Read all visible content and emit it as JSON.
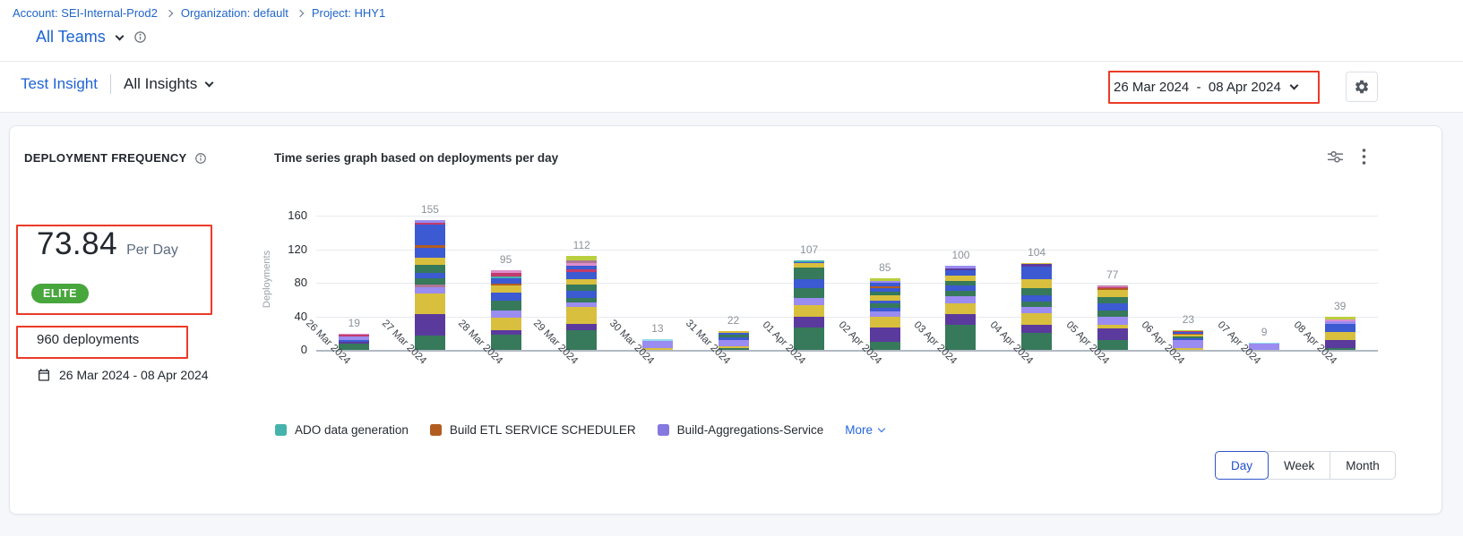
{
  "page": {
    "background": "#f5f7fa",
    "annotation_color": "#ec3a26"
  },
  "breadcrumb": {
    "items": [
      {
        "label": "Account: SEI-Internal-Prod2"
      },
      {
        "label": "Organization: default"
      },
      {
        "label": "Project: HHY1"
      }
    ]
  },
  "team_selector": {
    "label": "All Teams"
  },
  "insight_header": {
    "insight_name": "Test Insight",
    "scope_label": "All Insights"
  },
  "date_range_picker": {
    "label": "26 Mar 2024  -  08 Apr 2024"
  },
  "widget": {
    "title": "DEPLOYMENT FREQUENCY",
    "metric": {
      "value": "73.84",
      "unit": "Per Day",
      "badge": "ELITE",
      "badge_color": "#47a63c"
    },
    "total_label": "960 deployments",
    "date_range": "26 Mar 2024 - 08 Apr 2024",
    "granularity": {
      "options": [
        "Day",
        "Week",
        "Month"
      ],
      "selected": "Day"
    }
  },
  "chart_data": {
    "type": "bar",
    "stacked": true,
    "title": "Time series graph based on deployments per day",
    "xlabel": "",
    "ylabel": "Deployments",
    "ylim": [
      0,
      160
    ],
    "yticks": [
      0,
      40,
      80,
      120,
      160
    ],
    "grid": true,
    "legend_position": "bottom",
    "categories": [
      "26 Mar 2024",
      "27 Mar 2024",
      "28 Mar 2024",
      "29 Mar 2024",
      "30 Mar 2024",
      "31 Mar 2024",
      "01 Apr 2024",
      "02 Apr 2024",
      "03 Apr 2024",
      "04 Apr 2024",
      "05 Apr 2024",
      "06 Apr 2024",
      "07 Apr 2024",
      "08 Apr 2024"
    ],
    "totals": [
      19,
      155,
      95,
      112,
      13,
      22,
      107,
      85,
      100,
      104,
      77,
      23,
      9,
      39
    ],
    "palette": {
      "green": "#36795b",
      "darkpurple": "#5b3a9e",
      "yellow": "#d9bf3e",
      "lavender": "#9a8cf0",
      "blue": "#3c5ad1",
      "teal": "#45b3ab",
      "orange": "#b35c20",
      "crimson": "#c23b6c",
      "pink": "#dd8ecb",
      "mauve": "#b07596",
      "lightblue": "#97dbeb",
      "lime": "#b9cf3d"
    },
    "bars": [
      {
        "category": "26 Mar 2024",
        "total": 19,
        "segments": [
          [
            "green",
            8
          ],
          [
            "darkpurple",
            2
          ],
          [
            "blue",
            2
          ],
          [
            "lavender",
            4
          ],
          [
            "crimson",
            2
          ],
          [
            "pink",
            1
          ]
        ]
      },
      {
        "category": "27 Mar 2024",
        "total": 155,
        "segments": [
          [
            "green",
            17
          ],
          [
            "darkpurple",
            26
          ],
          [
            "yellow",
            24
          ],
          [
            "lavender",
            8
          ],
          [
            "mauve",
            3
          ],
          [
            "green",
            7
          ],
          [
            "blue",
            7
          ],
          [
            "green",
            9
          ],
          [
            "yellow",
            9
          ],
          [
            "blue",
            12
          ],
          [
            "orange",
            3
          ],
          [
            "blue",
            24
          ],
          [
            "crimson",
            3
          ],
          [
            "lavender",
            3
          ]
        ]
      },
      {
        "category": "28 Mar 2024",
        "total": 95,
        "segments": [
          [
            "green",
            18
          ],
          [
            "darkpurple",
            5
          ],
          [
            "yellow",
            15
          ],
          [
            "lavender",
            9
          ],
          [
            "green",
            12
          ],
          [
            "blue",
            9
          ],
          [
            "yellow",
            9
          ],
          [
            "orange",
            2
          ],
          [
            "blue",
            6
          ],
          [
            "teal",
            3
          ],
          [
            "crimson",
            4
          ],
          [
            "pink",
            3
          ]
        ]
      },
      {
        "category": "29 Mar 2024",
        "total": 112,
        "segments": [
          [
            "green",
            23
          ],
          [
            "darkpurple",
            8
          ],
          [
            "yellow",
            20
          ],
          [
            "lavender",
            6
          ],
          [
            "green",
            5
          ],
          [
            "blue",
            8
          ],
          [
            "green",
            8
          ],
          [
            "yellow",
            6
          ],
          [
            "blue",
            9
          ],
          [
            "crimson",
            3
          ],
          [
            "blue",
            4
          ],
          [
            "pink",
            4
          ],
          [
            "mauve",
            3
          ],
          [
            "lime",
            5
          ]
        ]
      },
      {
        "category": "30 Mar 2024",
        "total": 13,
        "segments": [
          [
            "yellow",
            2
          ],
          [
            "lavender",
            9
          ],
          [
            "lightblue",
            2
          ]
        ]
      },
      {
        "category": "31 Mar 2024",
        "total": 22,
        "segments": [
          [
            "green",
            2
          ],
          [
            "yellow",
            2
          ],
          [
            "lavender",
            8
          ],
          [
            "blue",
            3
          ],
          [
            "green",
            3
          ],
          [
            "blue",
            2
          ],
          [
            "yellow",
            2
          ]
        ]
      },
      {
        "category": "01 Apr 2024",
        "total": 107,
        "segments": [
          [
            "green",
            27
          ],
          [
            "darkpurple",
            12
          ],
          [
            "yellow",
            14
          ],
          [
            "lavender",
            9
          ],
          [
            "green",
            12
          ],
          [
            "blue",
            10
          ],
          [
            "green",
            14
          ],
          [
            "yellow",
            5
          ],
          [
            "blue",
            2
          ],
          [
            "teal",
            2
          ]
        ]
      },
      {
        "category": "02 Apr 2024",
        "total": 85,
        "segments": [
          [
            "green",
            10
          ],
          [
            "darkpurple",
            17
          ],
          [
            "yellow",
            12
          ],
          [
            "lavender",
            7
          ],
          [
            "blue",
            4
          ],
          [
            "green",
            5
          ],
          [
            "blue",
            4
          ],
          [
            "yellow",
            6
          ],
          [
            "green",
            4
          ],
          [
            "blue",
            5
          ],
          [
            "orange",
            2
          ],
          [
            "blue",
            4
          ],
          [
            "lavender",
            2
          ],
          [
            "lime",
            3
          ]
        ]
      },
      {
        "category": "03 Apr 2024",
        "total": 100,
        "segments": [
          [
            "green",
            30
          ],
          [
            "darkpurple",
            13
          ],
          [
            "yellow",
            13
          ],
          [
            "lavender",
            8
          ],
          [
            "green",
            6
          ],
          [
            "blue",
            7
          ],
          [
            "green",
            5
          ],
          [
            "yellow",
            7
          ],
          [
            "blue",
            6
          ],
          [
            "darkpurple",
            2
          ],
          [
            "lavender",
            3
          ]
        ]
      },
      {
        "category": "04 Apr 2024",
        "total": 104,
        "segments": [
          [
            "green",
            20
          ],
          [
            "darkpurple",
            10
          ],
          [
            "yellow",
            14
          ],
          [
            "lavender",
            7
          ],
          [
            "green",
            7
          ],
          [
            "blue",
            7
          ],
          [
            "green",
            9
          ],
          [
            "yellow",
            10
          ],
          [
            "blue",
            15
          ],
          [
            "darkpurple",
            3
          ],
          [
            "yellow",
            2
          ]
        ]
      },
      {
        "category": "05 Apr 2024",
        "total": 77,
        "segments": [
          [
            "green",
            12
          ],
          [
            "darkpurple",
            14
          ],
          [
            "yellow",
            4
          ],
          [
            "lavender",
            10
          ],
          [
            "green",
            7
          ],
          [
            "blue",
            8
          ],
          [
            "green",
            8
          ],
          [
            "yellow",
            9
          ],
          [
            "orange",
            2
          ],
          [
            "crimson",
            1
          ],
          [
            "pink",
            1
          ],
          [
            "mauve",
            1
          ]
        ]
      },
      {
        "category": "06 Apr 2024",
        "total": 23,
        "segments": [
          [
            "yellow",
            2
          ],
          [
            "lavender",
            10
          ],
          [
            "blue",
            2
          ],
          [
            "green",
            2
          ],
          [
            "yellow",
            2
          ],
          [
            "orange",
            1
          ],
          [
            "blue",
            2
          ],
          [
            "crimson",
            1
          ],
          [
            "lime",
            1
          ]
        ]
      },
      {
        "category": "07 Apr 2024",
        "total": 9,
        "segments": [
          [
            "lavender",
            8
          ],
          [
            "lightblue",
            1
          ]
        ]
      },
      {
        "category": "08 Apr 2024",
        "total": 39,
        "segments": [
          [
            "green",
            2
          ],
          [
            "darkpurple",
            10
          ],
          [
            "yellow",
            9
          ],
          [
            "blue",
            6
          ],
          [
            "blue",
            4
          ],
          [
            "lavender",
            3
          ],
          [
            "pink",
            2
          ],
          [
            "lime",
            3
          ]
        ]
      }
    ],
    "legend": [
      {
        "label": "ADO data generation",
        "color": "#45b3ab"
      },
      {
        "label": "Build ETL SERVICE SCHEDULER",
        "color": "#b35c20"
      },
      {
        "label": "Build-Aggregations-Service",
        "color": "#8578e0"
      }
    ],
    "legend_more_label": "More"
  }
}
